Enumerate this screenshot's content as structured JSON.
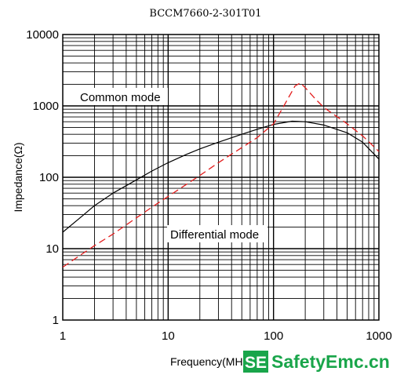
{
  "chart_data": {
    "type": "line",
    "title": "BCCM7660-2-301T01",
    "xlabel": "Frequency(MHz)",
    "ylabel": "Impedance(Ω)",
    "xscale": "log",
    "yscale": "log",
    "xlim": [
      1,
      1000
    ],
    "ylim": [
      1,
      10000
    ],
    "grid": true,
    "x_ticks": [
      "1",
      "10",
      "100",
      "1000"
    ],
    "y_ticks": [
      "1",
      "10",
      "100",
      "1000",
      "10000"
    ],
    "annotations": [
      "Common mode",
      "Differential mode"
    ],
    "series": [
      {
        "name": "Common mode",
        "color": "#000000",
        "style": "solid",
        "x": [
          1,
          1.5,
          2,
          3,
          5,
          7,
          10,
          15,
          20,
          30,
          50,
          70,
          100,
          150,
          200,
          300,
          500,
          700,
          1000
        ],
        "y": [
          17,
          28,
          40,
          60,
          92,
          122,
          160,
          210,
          250,
          310,
          400,
          470,
          550,
          610,
          600,
          540,
          420,
          310,
          180
        ]
      },
      {
        "name": "Differential mode",
        "color": "#e31e1e",
        "style": "dashed",
        "x": [
          1,
          1.5,
          2,
          3,
          5,
          7,
          10,
          15,
          20,
          30,
          50,
          70,
          100,
          130,
          160,
          180,
          200,
          250,
          300,
          500,
          700,
          1000
        ],
        "y": [
          5.5,
          8.3,
          11,
          16,
          27,
          38,
          54,
          80,
          106,
          160,
          260,
          360,
          560,
          1100,
          1900,
          2100,
          1800,
          1250,
          950,
          560,
          380,
          230
        ]
      }
    ]
  },
  "watermark": {
    "badge": "SE",
    "text": "SafetyEmc.cn"
  }
}
